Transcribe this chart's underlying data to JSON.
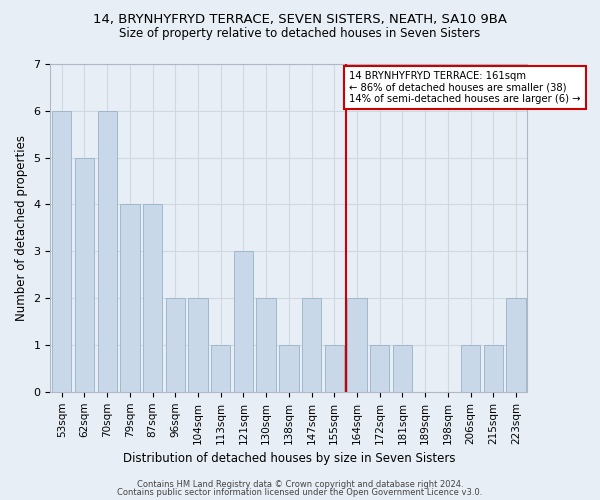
{
  "title": "14, BRYNHYFRYD TERRACE, SEVEN SISTERS, NEATH, SA10 9BA",
  "subtitle": "Size of property relative to detached houses in Seven Sisters",
  "xlabel": "Distribution of detached houses by size in Seven Sisters",
  "ylabel": "Number of detached properties",
  "footer_line1": "Contains HM Land Registry data © Crown copyright and database right 2024.",
  "footer_line2": "Contains public sector information licensed under the Open Government Licence v3.0.",
  "bin_labels": [
    "53sqm",
    "62sqm",
    "70sqm",
    "79sqm",
    "87sqm",
    "96sqm",
    "104sqm",
    "113sqm",
    "121sqm",
    "130sqm",
    "138sqm",
    "147sqm",
    "155sqm",
    "164sqm",
    "172sqm",
    "181sqm",
    "189sqm",
    "198sqm",
    "206sqm",
    "215sqm",
    "223sqm"
  ],
  "bar_heights": [
    6,
    5,
    6,
    4,
    4,
    2,
    2,
    1,
    3,
    2,
    1,
    2,
    1,
    2,
    1,
    1,
    0,
    0,
    1,
    1,
    2
  ],
  "bar_color": "#c8d8e8",
  "bar_edgecolor": "#a0b8cc",
  "red_line_bin_index": 12,
  "annotation_text": "14 BRYNHYFRYD TERRACE: 161sqm\n← 86% of detached houses are smaller (38)\n14% of semi-detached houses are larger (6) →",
  "annotation_box_color": "#ffffff",
  "annotation_box_edgecolor": "#cc0000",
  "red_line_color": "#cc0000",
  "ylim": [
    0,
    7
  ],
  "yticks": [
    0,
    1,
    2,
    3,
    4,
    5,
    6,
    7
  ],
  "grid_color": "#d0d8e0",
  "background_color": "#e8eef5",
  "plot_background": "#e8eef5",
  "title_fontsize": 9.5,
  "subtitle_fontsize": 8.5,
  "ylabel_fontsize": 8.5,
  "xlabel_fontsize": 8.5,
  "tick_fontsize": 7.5,
  "footer_fontsize": 6.0
}
